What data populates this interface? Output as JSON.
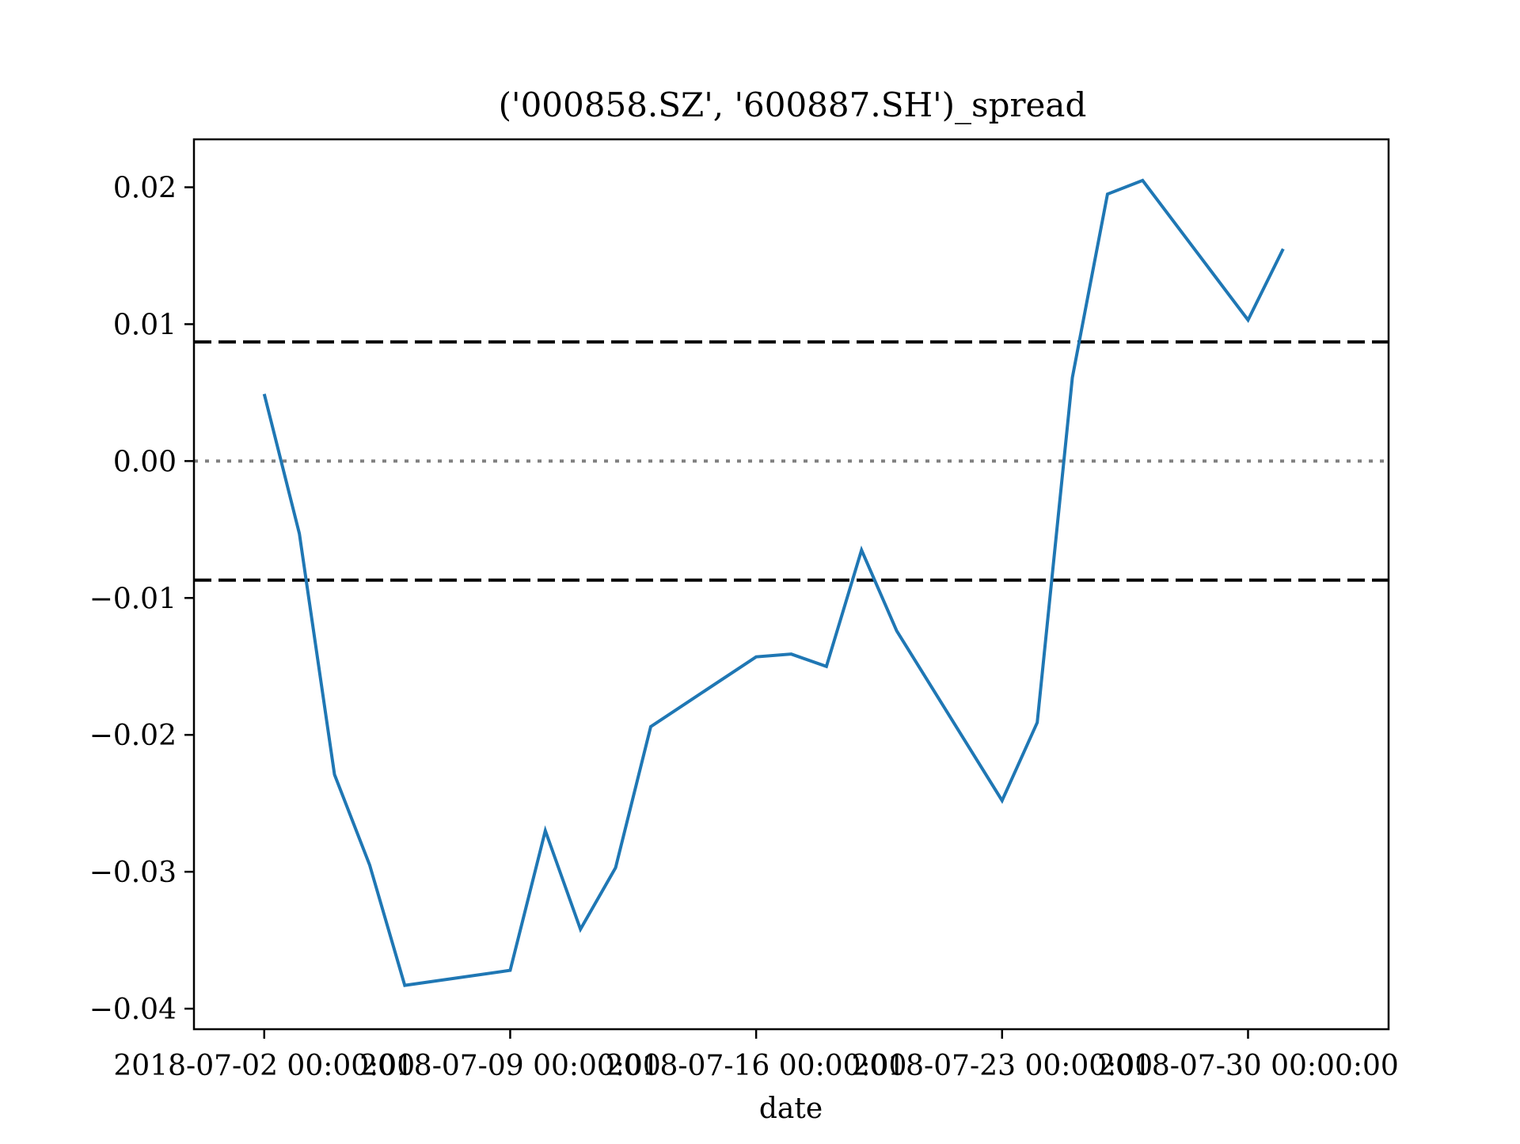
{
  "chart_data": {
    "type": "line",
    "title": "('000858.SZ', '600887.SH')_spread",
    "xlabel": "date",
    "ylabel": "",
    "ylim": [
      -0.0415,
      0.0235
    ],
    "xlim": [
      "2018-06-30",
      "2018-08-03"
    ],
    "grid": false,
    "x": [
      "2018-07-02",
      "2018-07-03",
      "2018-07-04",
      "2018-07-05",
      "2018-07-06",
      "2018-07-09",
      "2018-07-10",
      "2018-07-11",
      "2018-07-12",
      "2018-07-13",
      "2018-07-16",
      "2018-07-17",
      "2018-07-18",
      "2018-07-19",
      "2018-07-20",
      "2018-07-23",
      "2018-07-24",
      "2018-07-25",
      "2018-07-26",
      "2018-07-27",
      "2018-07-30",
      "2018-07-31"
    ],
    "x_ticks": [
      "2018-07-02",
      "2018-07-09",
      "2018-07-16",
      "2018-07-23",
      "2018-07-30"
    ],
    "x_tick_labels": [
      "2018-07-02 00:00:00",
      "2018-07-09 00:00:00",
      "2018-07-16 00:00:00",
      "2018-07-23 00:00:00",
      "2018-07-30 00:00:00"
    ],
    "y_ticks": [
      0.02,
      0.01,
      0.0,
      -0.01,
      -0.02,
      -0.03,
      -0.04
    ],
    "y_tick_labels": [
      "0.02",
      "0.01",
      "0.00",
      "−0.01",
      "−0.02",
      "−0.03",
      "−0.04"
    ],
    "series": [
      {
        "color": "#1f77b4",
        "values": [
          0.0049,
          -0.0053,
          -0.0229,
          -0.0295,
          -0.0383,
          -0.0372,
          -0.027,
          -0.0342,
          -0.0297,
          -0.0194,
          -0.0143,
          -0.0141,
          -0.015,
          -0.0065,
          -0.0124,
          -0.0248,
          -0.0191,
          0.0061,
          0.0195,
          0.0205,
          0.0103,
          0.0155
        ]
      }
    ],
    "reference_lines": [
      {
        "y": 0.0087,
        "style": "dashed",
        "color": "#000000"
      },
      {
        "y": 0.0,
        "style": "dotted",
        "color": "#808080"
      },
      {
        "y": -0.0087,
        "style": "dashed",
        "color": "#000000"
      }
    ]
  }
}
